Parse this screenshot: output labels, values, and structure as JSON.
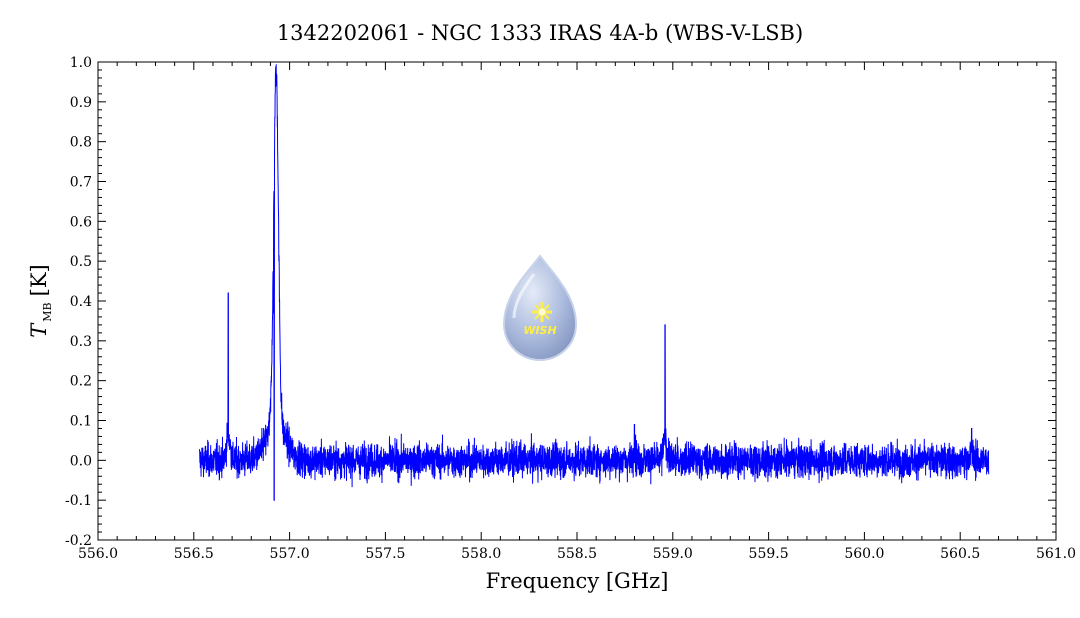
{
  "chart_data": {
    "type": "line",
    "title": "1342202061 - NGC 1333 IRAS 4A-b (WBS-V-LSB)",
    "xlabel": "Frequency [GHz]",
    "ylabel_main": "T",
    "ylabel_sub": "MB",
    "ylabel_unit": "[K]",
    "xlim": [
      556.0,
      561.0
    ],
    "ylim": [
      -0.2,
      1.0
    ],
    "x_ticks": [
      556.0,
      556.5,
      557.0,
      557.5,
      558.0,
      558.5,
      559.0,
      559.5,
      560.0,
      560.5,
      561.0
    ],
    "x_tick_labels": [
      "556.0",
      "556.5",
      "557.0",
      "557.5",
      "558.0",
      "558.5",
      "559.0",
      "559.5",
      "560.0",
      "560.5",
      "561.0"
    ],
    "y_ticks": [
      -0.2,
      -0.1,
      0.0,
      0.1,
      0.2,
      0.3,
      0.4,
      0.5,
      0.6,
      0.7,
      0.8,
      0.9,
      1.0
    ],
    "y_tick_labels": [
      "-0.2",
      "-0.1",
      "0.0",
      "0.1",
      "0.2",
      "0.3",
      "0.4",
      "0.5",
      "0.6",
      "0.7",
      "0.8",
      "0.9",
      "1.0"
    ],
    "grid": false,
    "series": [
      {
        "color": "#0000ff",
        "x_range": [
          556.53,
          560.65
        ],
        "noise_rms": 0.03,
        "features": [
          {
            "x": 556.68,
            "peak": 0.42,
            "kind": "narrow"
          },
          {
            "x": 556.93,
            "peak": 0.87,
            "kind": "broad"
          },
          {
            "x": 556.915,
            "peak": 0.37,
            "kind": "narrow"
          },
          {
            "x": 556.92,
            "peak": -0.1,
            "kind": "absorption"
          },
          {
            "x": 558.8,
            "peak": 0.09,
            "kind": "narrow"
          },
          {
            "x": 558.96,
            "peak": 0.34,
            "kind": "narrow"
          },
          {
            "x": 560.56,
            "peak": 0.08,
            "kind": "narrow"
          }
        ]
      }
    ]
  },
  "logo": {
    "label": "WISH",
    "icon": "water-drop-star-icon",
    "colors": {
      "drop": "#a9b9dc",
      "star": "#ffee44"
    }
  }
}
